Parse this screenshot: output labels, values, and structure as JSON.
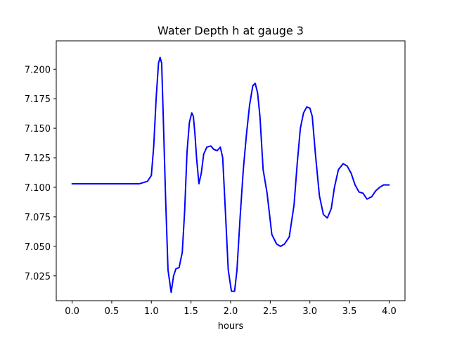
{
  "chart_data": {
    "type": "line",
    "title": "Water Depth h at gauge 3",
    "xlabel": "hours",
    "ylabel": "",
    "xlim": [
      -0.2,
      4.2
    ],
    "ylim": [
      7.004,
      7.224
    ],
    "grid": false,
    "x_ticks": [
      "0.0",
      "0.5",
      "1.0",
      "1.5",
      "2.0",
      "2.5",
      "3.0",
      "3.5",
      "4.0"
    ],
    "y_ticks": [
      "7.025",
      "7.050",
      "7.075",
      "7.100",
      "7.125",
      "7.150",
      "7.175",
      "7.200"
    ],
    "series": [
      {
        "color": "#0000ff",
        "x": [
          0.0,
          0.5,
          0.75,
          0.85,
          0.95,
          1.0,
          1.03,
          1.06,
          1.09,
          1.11,
          1.13,
          1.15,
          1.18,
          1.21,
          1.25,
          1.28,
          1.31,
          1.35,
          1.39,
          1.42,
          1.45,
          1.48,
          1.51,
          1.53,
          1.55,
          1.57,
          1.6,
          1.63,
          1.66,
          1.7,
          1.75,
          1.79,
          1.83,
          1.87,
          1.9,
          1.93,
          1.97,
          2.01,
          2.05,
          2.08,
          2.12,
          2.16,
          2.2,
          2.24,
          2.28,
          2.31,
          2.34,
          2.37,
          2.41,
          2.46,
          2.52,
          2.58,
          2.63,
          2.68,
          2.74,
          2.8,
          2.84,
          2.88,
          2.92,
          2.96,
          3.0,
          3.03,
          3.07,
          3.12,
          3.17,
          3.22,
          3.27,
          3.31,
          3.36,
          3.42,
          3.47,
          3.52,
          3.57,
          3.62,
          3.67,
          3.72,
          3.78,
          3.83,
          3.88,
          3.93,
          4.0
        ],
        "y": [
          7.103,
          7.103,
          7.103,
          7.103,
          7.105,
          7.11,
          7.135,
          7.175,
          7.205,
          7.21,
          7.205,
          7.16,
          7.09,
          7.03,
          7.011,
          7.025,
          7.031,
          7.032,
          7.045,
          7.08,
          7.13,
          7.155,
          7.163,
          7.16,
          7.145,
          7.125,
          7.103,
          7.112,
          7.128,
          7.134,
          7.135,
          7.132,
          7.131,
          7.134,
          7.125,
          7.085,
          7.03,
          7.012,
          7.012,
          7.03,
          7.075,
          7.115,
          7.145,
          7.17,
          7.186,
          7.188,
          7.18,
          7.16,
          7.115,
          7.095,
          7.06,
          7.052,
          7.05,
          7.052,
          7.058,
          7.085,
          7.12,
          7.15,
          7.163,
          7.168,
          7.167,
          7.16,
          7.128,
          7.093,
          7.077,
          7.074,
          7.082,
          7.1,
          7.115,
          7.12,
          7.118,
          7.112,
          7.102,
          7.096,
          7.095,
          7.09,
          7.092,
          7.097,
          7.1,
          7.102,
          7.102
        ]
      }
    ]
  }
}
